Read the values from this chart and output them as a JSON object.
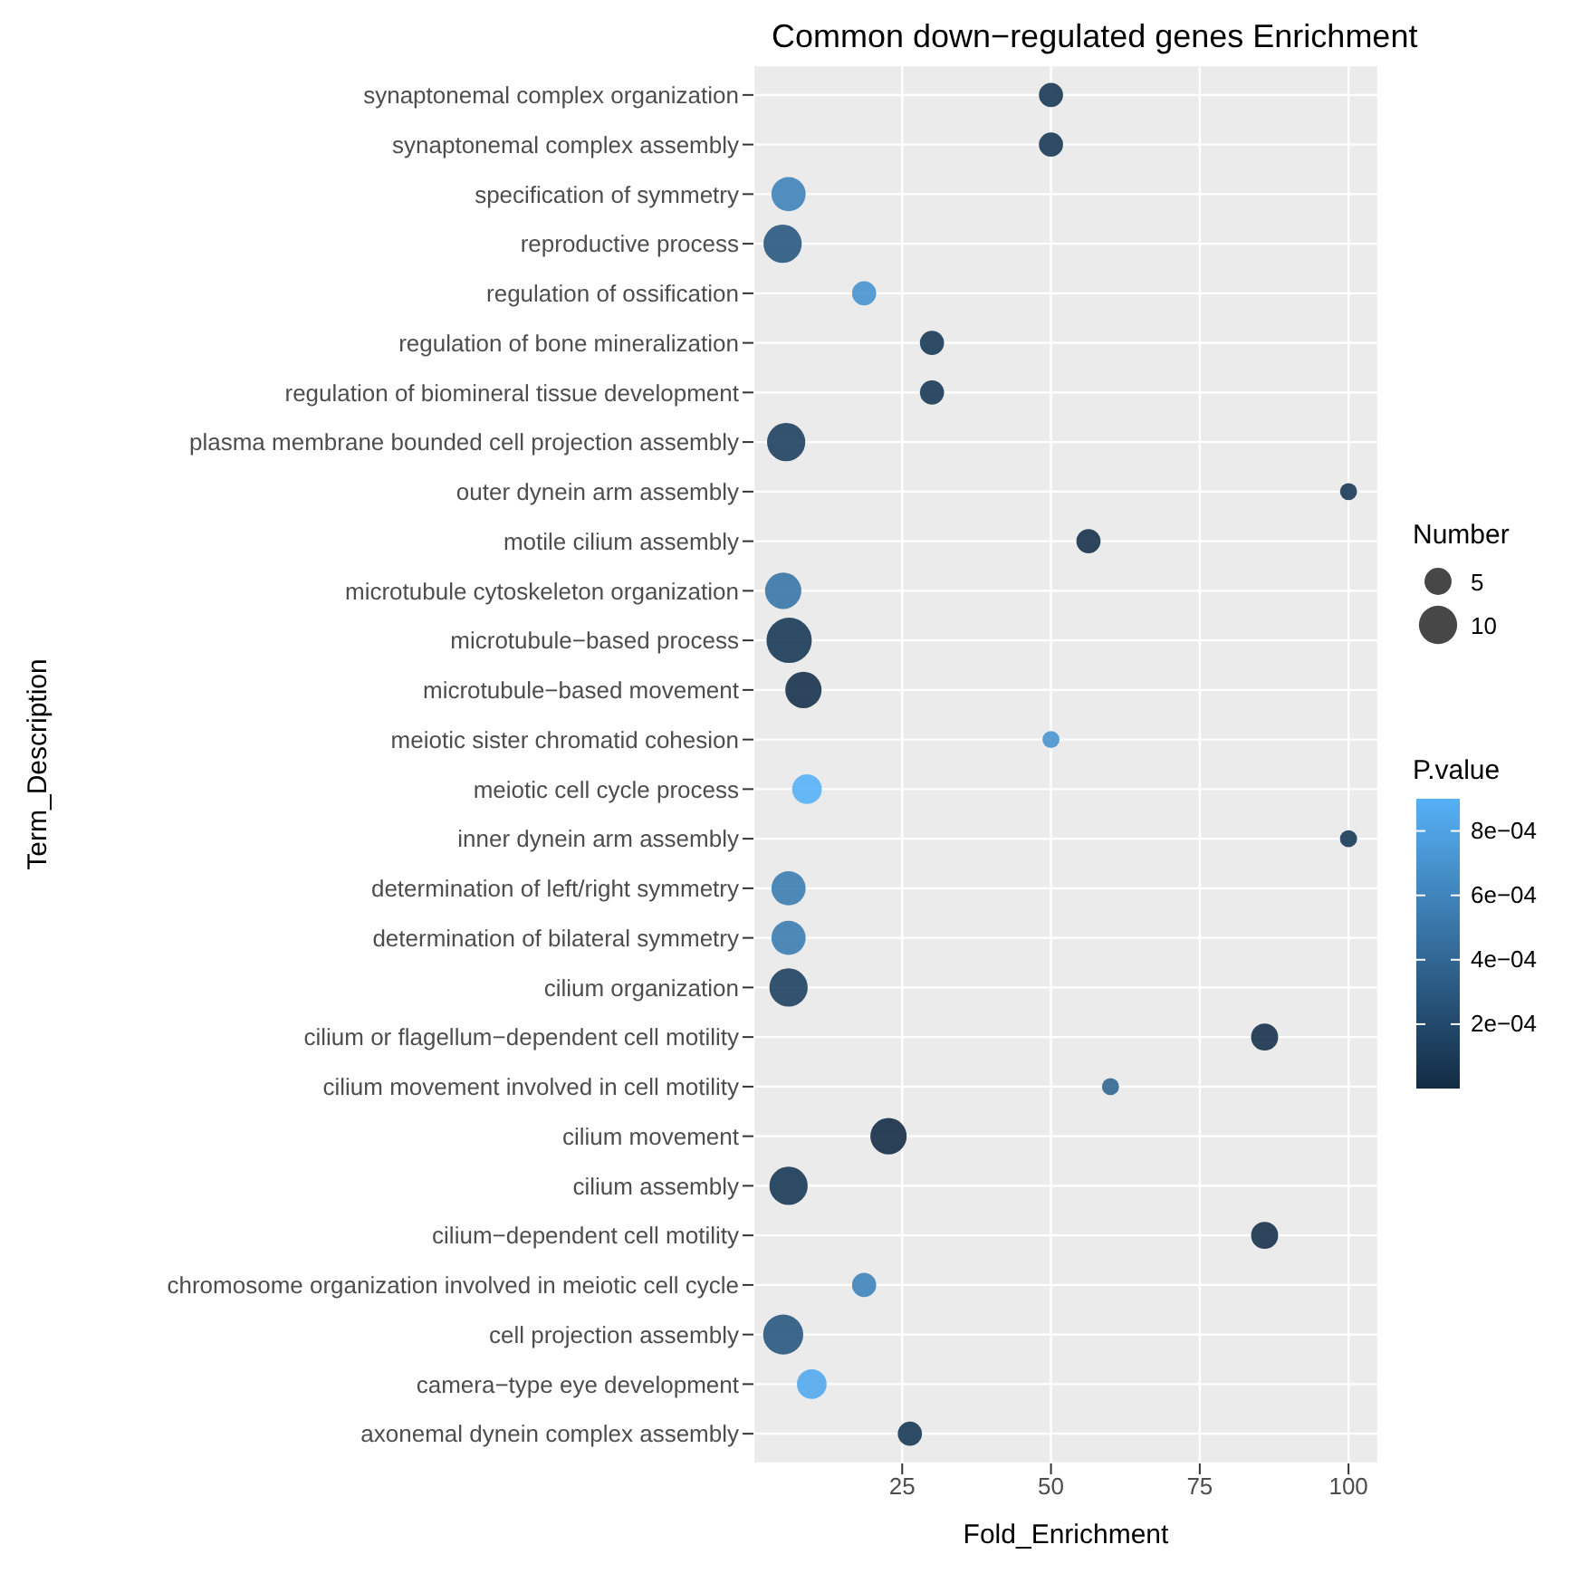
{
  "chart_data": {
    "type": "bubble",
    "orientation": "horizontal",
    "title": "Common down−regulated genes Enrichment",
    "xlabel": "Fold_Enrichment",
    "ylabel": "Term_Description",
    "legend_title": "Number",
    "clabel": "P.value",
    "grid": true,
    "categories": [
      "synaptonemal complex organization",
      "synaptonemal complex assembly",
      "specification of symmetry",
      "reproductive process",
      "regulation of ossification",
      "regulation of bone mineralization",
      "regulation of biomineral tissue development",
      "plasma membrane bounded cell projection assembly",
      "outer dynein arm assembly",
      "motile cilium assembly",
      "microtubule cytoskeleton organization",
      "microtubule−based process",
      "microtubule−based movement",
      "meiotic sister chromatid cohesion",
      "meiotic cell cycle process",
      "inner dynein arm assembly",
      "determination of left/right symmetry",
      "determination of bilateral symmetry",
      "cilium organization",
      "cilium or flagellum−dependent cell motility",
      "cilium movement involved in cell motility",
      "cilium movement",
      "cilium assembly",
      "cilium−dependent cell motility",
      "chromosome organization involved in meiotic cell cycle",
      "cell projection assembly",
      "camera−type eye development",
      "axonemal dynein complex assembly"
    ],
    "values": [
      50,
      50,
      5.9,
      4.9,
      18.6,
      30,
      30,
      5.5,
      100,
      56.3,
      5,
      6,
      8.4,
      50,
      9,
      100,
      5.9,
      5.9,
      5.9,
      85.9,
      60,
      22.7,
      5.9,
      85.9,
      18.6,
      5,
      9.8,
      26.3
    ],
    "sizes": [
      4,
      4,
      8,
      10,
      4,
      4,
      4,
      10,
      2,
      4,
      9,
      14,
      9,
      2,
      6,
      2,
      8,
      8,
      10,
      5,
      2,
      9,
      10,
      5,
      4,
      11,
      6,
      4
    ],
    "cvalues": [
      0.0001,
      0.0001,
      0.0006,
      0.0003,
      0.0007,
      0.0001,
      0.0001,
      0.00015,
      0.0001,
      5e-05,
      0.0005,
      0.0001,
      5e-05,
      0.0007,
      0.0009,
      0.0001,
      0.00055,
      0.00055,
      0.00015,
      5e-05,
      0.0004,
      2e-05,
      0.0001,
      5e-05,
      0.0006,
      0.0003,
      0.00085,
      0.0001
    ],
    "size_legend": [
      5,
      10
    ],
    "xlim": [
      0,
      105
    ],
    "xticks": [
      25,
      50,
      75,
      100
    ],
    "clim": [
      0,
      0.0009
    ],
    "cticks": [
      {
        "value": 0.0002,
        "label": "2e−04"
      },
      {
        "value": 0.0004,
        "label": "4e−04"
      },
      {
        "value": 0.0006,
        "label": "6e−04"
      },
      {
        "value": 0.0008,
        "label": "8e−04"
      }
    ]
  }
}
